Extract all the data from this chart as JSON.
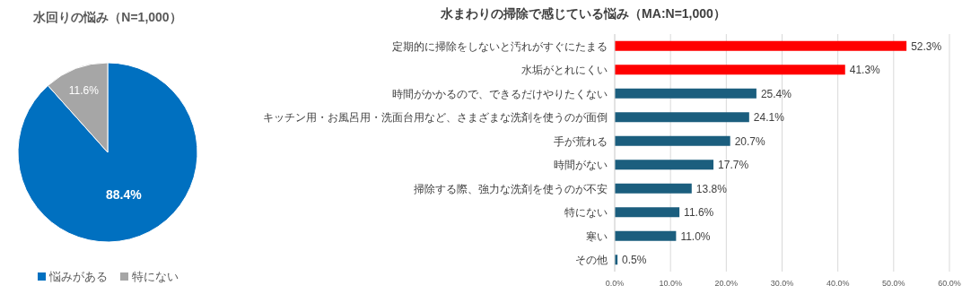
{
  "chart_data": [
    {
      "type": "pie",
      "title": "水回りの悩み（N=1,000）",
      "categories": [
        "悩みがある",
        "特にない"
      ],
      "values": [
        88.4,
        11.6
      ],
      "colors": [
        "#0070c0",
        "#a6a6a6"
      ],
      "value_labels": [
        "88.4%",
        "11.6%"
      ],
      "legend": "bottom"
    },
    {
      "type": "bar",
      "orientation": "horizontal",
      "title": "水まわりの掃除で感じている悩み（MA:N=1,000）",
      "categories": [
        "定期的に掃除をしないと汚れがすぐにたまる",
        "水垢がとれにくい",
        "時間がかかるので、できるだけやりたくない",
        "キッチン用・お風呂用・洗面台用など、さまざまな洗剤を使うのが面倒",
        "手が荒れる",
        "時間がない",
        "掃除する際、強力な洗剤を使うのが不安",
        "特にない",
        "寒い",
        "その他"
      ],
      "values": [
        52.3,
        41.3,
        25.4,
        24.1,
        20.7,
        17.7,
        13.8,
        11.6,
        11.0,
        0.5
      ],
      "colors": [
        "#ff0000",
        "#ff0000",
        "#1b5e7e",
        "#1b5e7e",
        "#1b5e7e",
        "#1b5e7e",
        "#1b5e7e",
        "#1b5e7e",
        "#1b5e7e",
        "#1b5e7e"
      ],
      "value_labels": [
        "52.3%",
        "41.3%",
        "25.4%",
        "24.1%",
        "20.7%",
        "17.7%",
        "13.8%",
        "11.6%",
        "11.0%",
        "0.5%"
      ],
      "xlim": [
        0,
        60
      ],
      "xticks": [
        {
          "value": 0,
          "label": "0.0%"
        },
        {
          "value": 10,
          "label": "10.0%"
        },
        {
          "value": 20,
          "label": "20.0%"
        },
        {
          "value": 30,
          "label": "30.0%"
        },
        {
          "value": 40,
          "label": "40.0%"
        },
        {
          "value": 50,
          "label": "50.0%"
        },
        {
          "value": 60,
          "label": "60.0%"
        }
      ],
      "grid": "x"
    }
  ]
}
